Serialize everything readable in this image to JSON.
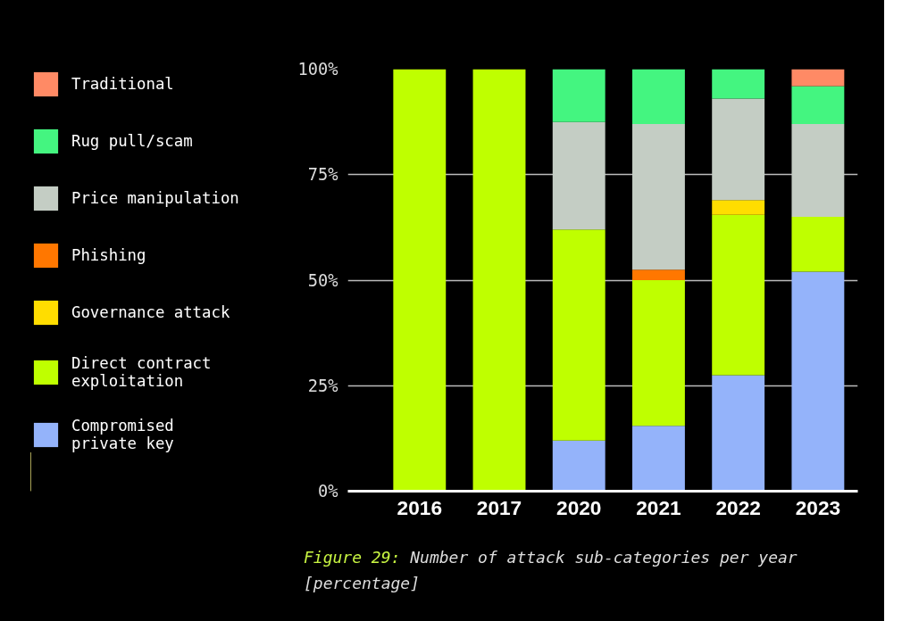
{
  "chart_data": {
    "type": "bar",
    "stacked": true,
    "categories": [
      "2016",
      "2017",
      "2020",
      "2021",
      "2022",
      "2023"
    ],
    "series": [
      {
        "name": "Compromised private key",
        "color": "#94b3fa",
        "values": [
          0,
          0,
          12,
          15.5,
          27.5,
          52
        ]
      },
      {
        "name": "Direct contract exploitation",
        "color": "#bfff00",
        "values": [
          100,
          100,
          50,
          34.5,
          38,
          13
        ]
      },
      {
        "name": "Governance attack",
        "color": "#ffdd00",
        "values": [
          0,
          0,
          0,
          0,
          3.5,
          0
        ]
      },
      {
        "name": "Phishing",
        "color": "#ff7700",
        "values": [
          0,
          0,
          0,
          2.5,
          0,
          0
        ]
      },
      {
        "name": "Price manipulation",
        "color": "#c4cdc4",
        "values": [
          0,
          0,
          25.5,
          34.5,
          24,
          22
        ]
      },
      {
        "name": "Rug pull/scam",
        "color": "#44f580",
        "values": [
          0,
          0,
          12.5,
          13,
          7,
          9
        ]
      },
      {
        "name": "Traditional",
        "color": "#ff8a65",
        "values": [
          0,
          0,
          0,
          0,
          0,
          4
        ]
      }
    ],
    "ylim": [
      0,
      100
    ],
    "yticks": [
      {
        "value": 0,
        "label": "0%"
      },
      {
        "value": 25,
        "label": "25%"
      },
      {
        "value": 50,
        "label": "50%"
      },
      {
        "value": 75,
        "label": "75%"
      },
      {
        "value": 100,
        "label": "100%"
      }
    ],
    "grid": "y",
    "legend": "left",
    "annotations": [
      "Figure 29: Number of attack sub-categories per year [percentage]"
    ]
  }
}
